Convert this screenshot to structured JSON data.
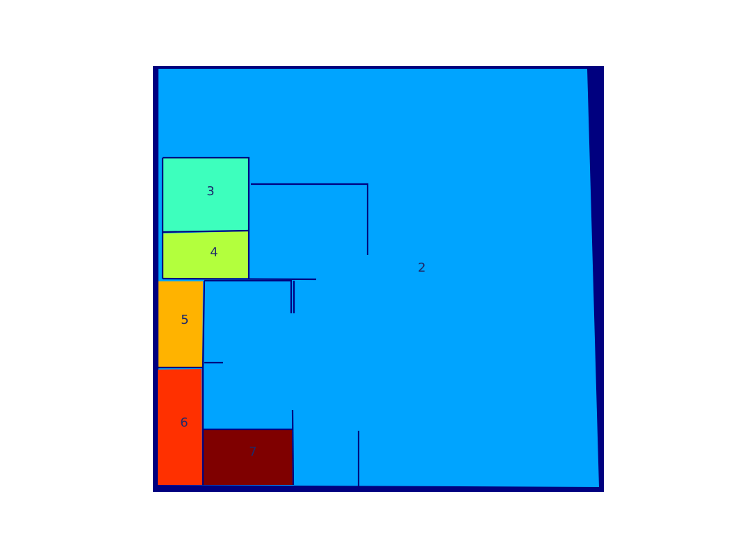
{
  "colors": {
    "background": "#ffffff",
    "outer_region": "#00007f",
    "wall": "#00007f"
  },
  "rooms": [
    {
      "id": "room-2",
      "label": "2",
      "color": "#00a4ff"
    },
    {
      "id": "room-3",
      "label": "3",
      "color": "#3dffbd"
    },
    {
      "id": "room-4",
      "label": "4",
      "color": "#b3ff3d"
    },
    {
      "id": "room-5",
      "label": "5",
      "color": "#ffb300"
    },
    {
      "id": "room-6",
      "label": "6",
      "color": "#ff3000"
    },
    {
      "id": "room-7",
      "label": "7",
      "color": "#7f0000"
    }
  ]
}
